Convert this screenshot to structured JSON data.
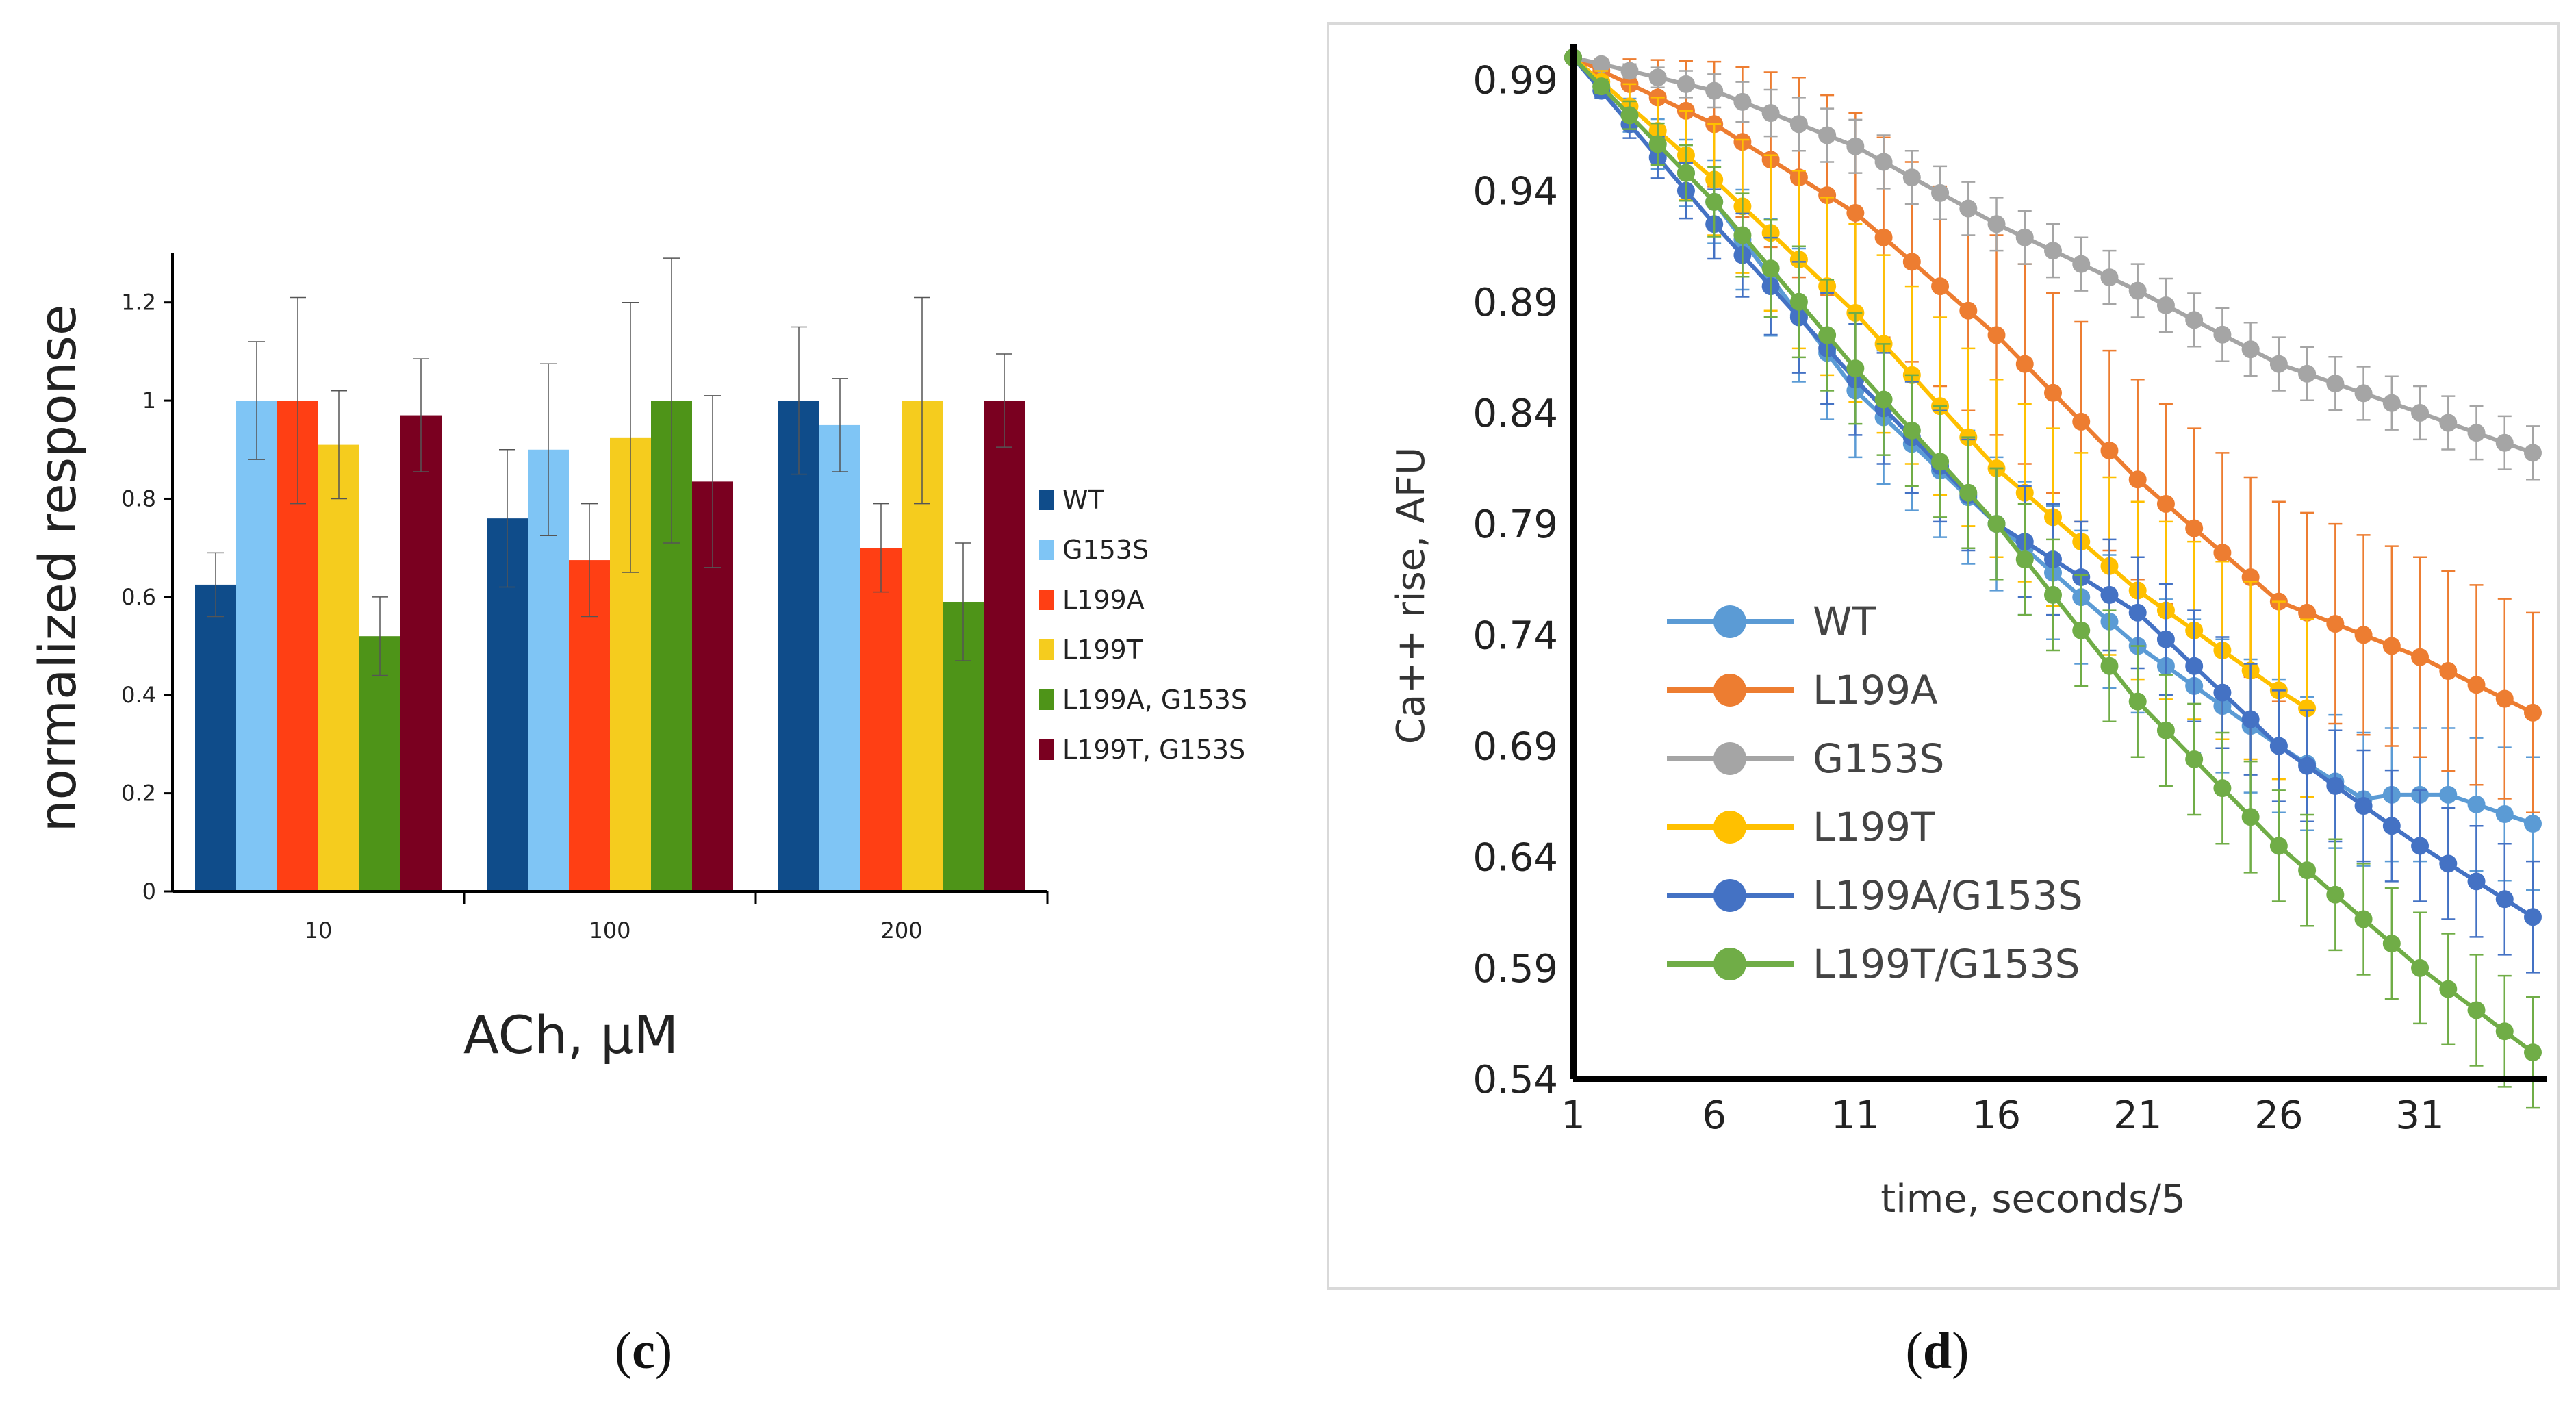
{
  "chart_data": [
    {
      "type": "bar",
      "panel_label": "c",
      "xlabel": "ACh, μM",
      "ylabel": "normalized response",
      "categories": [
        "10",
        "100",
        "200"
      ],
      "ylim": [
        0,
        1.3
      ],
      "yticks": [
        0,
        0.2,
        0.4,
        0.6,
        0.8,
        1,
        1.2
      ],
      "ytick_labels": [
        "0",
        "0.2",
        "0.4",
        "0.6",
        "0.8",
        "1",
        "1.2"
      ],
      "legend_position": "right",
      "series": [
        {
          "name": "WT",
          "color": "#0f4c8a",
          "values": [
            0.625,
            0.76,
            1.0
          ],
          "errors": [
            0.065,
            0.14,
            0.15
          ]
        },
        {
          "name": "G153S",
          "color": "#7fc5f5",
          "values": [
            1.0,
            0.9,
            0.95
          ],
          "errors": [
            0.12,
            0.175,
            0.095
          ]
        },
        {
          "name": "L199A",
          "color": "#ff3f14",
          "values": [
            1.0,
            0.675,
            0.7
          ],
          "errors": [
            0.21,
            0.115,
            0.09
          ]
        },
        {
          "name": "L199T",
          "color": "#f5cc1e",
          "values": [
            0.91,
            0.925,
            1.0
          ],
          "errors": [
            0.11,
            0.275,
            0.21
          ]
        },
        {
          "name": "L199A, G153S",
          "color": "#4e9418",
          "values": [
            0.52,
            1.0,
            0.59
          ],
          "errors": [
            0.08,
            0.29,
            0.12
          ]
        },
        {
          "name": "L199T, G153S",
          "color": "#7a0020",
          "values": [
            0.97,
            0.835,
            1.0
          ],
          "errors": [
            0.115,
            0.175,
            0.095
          ]
        }
      ]
    },
    {
      "type": "line",
      "panel_label": "d",
      "xlabel": "time, seconds/5",
      "ylabel": "Ca++ rise, AFU",
      "xlim": [
        1,
        35
      ],
      "ylim": [
        0.54,
        1.0
      ],
      "xticks": [
        1,
        6,
        11,
        16,
        21,
        26,
        31
      ],
      "xtick_labels": [
        "1",
        "6",
        "11",
        "16",
        "21",
        "26",
        "31"
      ],
      "yticks": [
        0.99,
        0.94,
        0.89,
        0.84,
        0.79,
        0.74,
        0.69,
        0.64,
        0.59,
        0.54
      ],
      "ytick_labels": [
        "0.99",
        "0.94",
        "0.89",
        "0.84",
        "0.79",
        "0.74",
        "0.69",
        "0.64",
        "0.59",
        "0.54"
      ],
      "legend_position": "center-left",
      "series": [
        {
          "name": "WT",
          "color": "#5b9bd5",
          "x_end": 35,
          "start": 1.0,
          "end": 0.655,
          "points": {
            "1": 1.0,
            "6": 0.935,
            "11": 0.85,
            "16": 0.79,
            "21": 0.735,
            "26": 0.69,
            "29": 0.666,
            "30": 0.668,
            "32": 0.668,
            "35": 0.655
          },
          "error": 0.03
        },
        {
          "name": "L199A",
          "color": "#ed7d31",
          "x_end": 35,
          "start": 1.0,
          "end": 0.705,
          "points": {
            "1": 1.0,
            "6": 0.97,
            "11": 0.93,
            "16": 0.875,
            "21": 0.81,
            "26": 0.755,
            "31": 0.73,
            "35": 0.705
          },
          "error": 0.045
        },
        {
          "name": "G153S",
          "color": "#a5a5a5",
          "x_end": 35,
          "start": 1.0,
          "end": 0.822,
          "points": {
            "1": 1.0,
            "6": 0.985,
            "11": 0.96,
            "16": 0.925,
            "21": 0.895,
            "26": 0.862,
            "31": 0.84,
            "35": 0.822
          },
          "error": 0.012
        },
        {
          "name": "L199T",
          "color": "#ffc000",
          "x_end": 27,
          "start": 1.0,
          "end": 0.707,
          "points": {
            "1": 1.0,
            "6": 0.945,
            "11": 0.885,
            "16": 0.815,
            "21": 0.76,
            "26": 0.715,
            "27": 0.707
          },
          "error": 0.04
        },
        {
          "name": "L199A/G153S",
          "color": "#4472c4",
          "x_end": 35,
          "start": 1.0,
          "end": 0.613,
          "points": {
            "1": 1.0,
            "6": 0.925,
            "11": 0.855,
            "16": 0.79,
            "21": 0.75,
            "26": 0.69,
            "31": 0.645,
            "35": 0.613
          },
          "error": 0.025
        },
        {
          "name": "L199T/G153S",
          "color": "#70ad47",
          "x_end": 35,
          "start": 1.0,
          "end": 0.552,
          "points": {
            "1": 1.0,
            "6": 0.935,
            "11": 0.86,
            "16": 0.79,
            "21": 0.71,
            "26": 0.645,
            "31": 0.59,
            "35": 0.552
          },
          "error": 0.025
        }
      ]
    }
  ]
}
